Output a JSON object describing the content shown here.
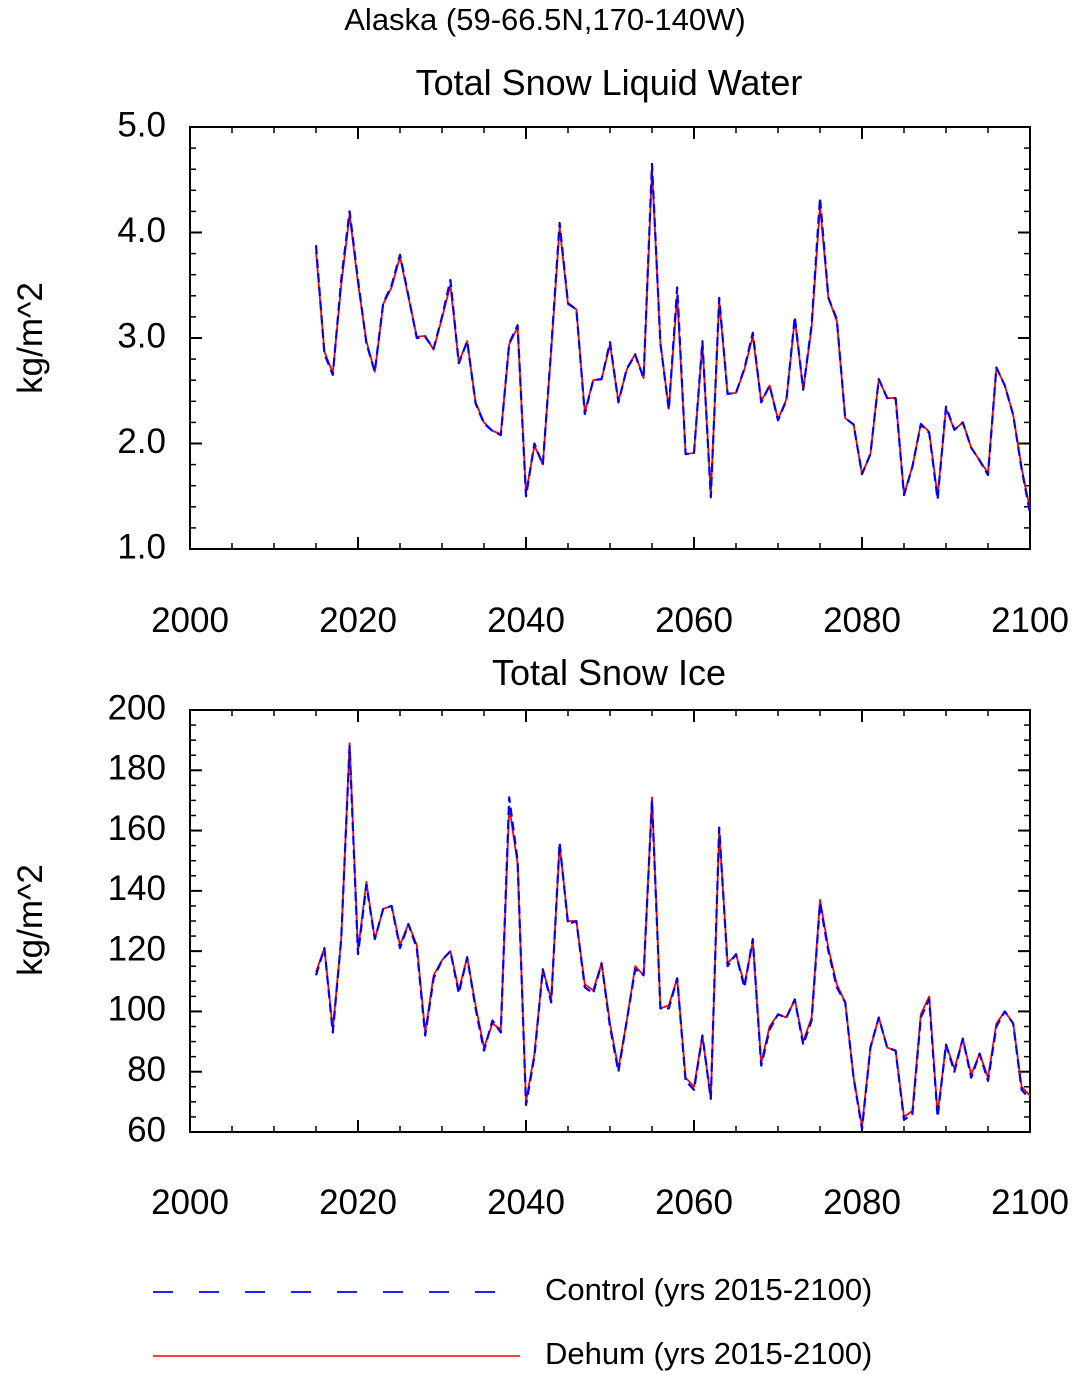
{
  "suptitle": "Alaska (59-66.5N,170-140W)",
  "legend": [
    {
      "label": "Control (yrs 2015-2100)",
      "color": "#0000ff",
      "dashed": true
    },
    {
      "label": "Dehum (yrs 2015-2100)",
      "color": "#ff0000",
      "dashed": false
    }
  ],
  "chart_data": [
    {
      "type": "line",
      "title": "Total Snow Liquid Water",
      "xlabel": "",
      "ylabel": "kg/m^2",
      "xlim": [
        2000,
        2100
      ],
      "ylim": [
        1.0,
        5.0
      ],
      "xticks": [
        2000,
        2020,
        2040,
        2060,
        2080,
        2100
      ],
      "yticks": [
        1.0,
        2.0,
        3.0,
        4.0,
        5.0
      ],
      "ytick_labels": [
        "1.0",
        "2.0",
        "3.0",
        "4.0",
        "5.0"
      ],
      "x": [
        2015,
        2016,
        2017,
        2018,
        2019,
        2020,
        2021,
        2022,
        2023,
        2024,
        2025,
        2026,
        2027,
        2028,
        2029,
        2030,
        2031,
        2032,
        2033,
        2034,
        2035,
        2036,
        2037,
        2038,
        2039,
        2040,
        2041,
        2042,
        2043,
        2044,
        2045,
        2046,
        2047,
        2048,
        2049,
        2050,
        2051,
        2052,
        2053,
        2054,
        2055,
        2056,
        2057,
        2058,
        2059,
        2060,
        2061,
        2062,
        2063,
        2064,
        2065,
        2066,
        2067,
        2068,
        2069,
        2070,
        2071,
        2072,
        2073,
        2074,
        2075,
        2076,
        2077,
        2078,
        2079,
        2080,
        2081,
        2082,
        2083,
        2084,
        2085,
        2086,
        2087,
        2088,
        2089,
        2090,
        2091,
        2092,
        2093,
        2094,
        2095,
        2096,
        2097,
        2098,
        2099,
        2100
      ],
      "series": [
        {
          "name": "Control (yrs 2015-2100)",
          "color": "#0000ff",
          "dashed": true,
          "values": [
            3.88,
            2.85,
            2.65,
            3.55,
            4.2,
            3.55,
            2.95,
            2.68,
            3.33,
            3.5,
            3.79,
            3.4,
            3.0,
            3.01,
            2.9,
            3.2,
            3.55,
            2.76,
            2.97,
            2.38,
            2.19,
            2.12,
            2.08,
            2.95,
            3.12,
            1.5,
            2.0,
            1.8,
            2.9,
            4.09,
            3.33,
            3.27,
            2.28,
            2.6,
            2.61,
            2.96,
            2.39,
            2.71,
            2.84,
            2.62,
            4.65,
            2.95,
            2.32,
            3.48,
            1.9,
            1.91,
            2.97,
            1.49,
            3.38,
            2.47,
            2.48,
            2.71,
            3.05,
            2.39,
            2.55,
            2.22,
            2.41,
            3.2,
            2.51,
            3.12,
            4.33,
            3.38,
            3.18,
            2.24,
            2.18,
            1.71,
            1.9,
            2.61,
            2.43,
            2.43,
            1.51,
            1.78,
            2.18,
            2.1,
            1.47,
            2.35,
            2.13,
            2.2,
            1.96,
            1.84,
            1.7,
            2.72,
            2.55,
            2.27,
            1.76,
            1.34
          ]
        },
        {
          "name": "Dehum (yrs 2015-2100)",
          "color": "#ff0000",
          "dashed": false,
          "values": [
            3.82,
            2.87,
            2.67,
            3.5,
            4.17,
            3.52,
            2.97,
            2.68,
            3.32,
            3.48,
            3.77,
            3.39,
            3.01,
            3.02,
            2.89,
            3.19,
            3.5,
            2.77,
            2.97,
            2.39,
            2.2,
            2.12,
            2.09,
            2.94,
            3.1,
            1.53,
            1.98,
            1.8,
            2.88,
            4.05,
            3.32,
            3.27,
            2.3,
            2.6,
            2.61,
            2.94,
            2.4,
            2.7,
            2.85,
            2.62,
            4.6,
            2.95,
            2.33,
            3.4,
            1.9,
            1.91,
            2.95,
            1.52,
            3.35,
            2.47,
            2.48,
            2.7,
            3.02,
            2.4,
            2.55,
            2.23,
            2.42,
            3.18,
            2.51,
            3.1,
            4.25,
            3.38,
            3.16,
            2.24,
            2.18,
            1.71,
            1.9,
            2.61,
            2.43,
            2.43,
            1.52,
            1.78,
            2.19,
            2.11,
            1.5,
            2.33,
            2.13,
            2.2,
            1.96,
            1.84,
            1.72,
            2.72,
            2.55,
            2.27,
            1.77,
            1.38
          ]
        }
      ]
    },
    {
      "type": "line",
      "title": "Total Snow Ice",
      "xlabel": "",
      "ylabel": "kg/m^2",
      "xlim": [
        2000,
        2100
      ],
      "ylim": [
        60,
        200
      ],
      "xticks": [
        2000,
        2020,
        2040,
        2060,
        2080,
        2100
      ],
      "yticks": [
        60,
        80,
        100,
        120,
        140,
        160,
        180,
        200
      ],
      "ytick_labels": [
        "60",
        "80",
        "100",
        "120",
        "140",
        "160",
        "180",
        "200"
      ],
      "x": [
        2015,
        2016,
        2017,
        2018,
        2019,
        2020,
        2021,
        2022,
        2023,
        2024,
        2025,
        2026,
        2027,
        2028,
        2029,
        2030,
        2031,
        2032,
        2033,
        2034,
        2035,
        2036,
        2037,
        2038,
        2039,
        2040,
        2041,
        2042,
        2043,
        2044,
        2045,
        2046,
        2047,
        2048,
        2049,
        2050,
        2051,
        2052,
        2053,
        2054,
        2055,
        2056,
        2057,
        2058,
        2059,
        2060,
        2061,
        2062,
        2063,
        2064,
        2065,
        2066,
        2067,
        2068,
        2069,
        2070,
        2071,
        2072,
        2073,
        2074,
        2075,
        2076,
        2077,
        2078,
        2079,
        2080,
        2081,
        2082,
        2083,
        2084,
        2085,
        2086,
        2087,
        2088,
        2089,
        2090,
        2091,
        2092,
        2093,
        2094,
        2095,
        2096,
        2097,
        2098,
        2099,
        2100
      ],
      "series": [
        {
          "name": "Control (yrs 2015-2100)",
          "color": "#0000ff",
          "dashed": true,
          "values": [
            112,
            121,
            93,
            124,
            188,
            119,
            142,
            124,
            134,
            135,
            121,
            129,
            121,
            92,
            111,
            117,
            120,
            106,
            118,
            101,
            87,
            97,
            93,
            171,
            150,
            69,
            85,
            114,
            103,
            156,
            129,
            130,
            108,
            106,
            116,
            95,
            80,
            97,
            114,
            112,
            170,
            101,
            101,
            111,
            77,
            74,
            92,
            71,
            161,
            115,
            119,
            108,
            124,
            82,
            94,
            99,
            98,
            104,
            89,
            97,
            136,
            120,
            108,
            103,
            78,
            61,
            88,
            98,
            88,
            87,
            64,
            66,
            98,
            104,
            65,
            89,
            80,
            91,
            78,
            86,
            77,
            95,
            100,
            96,
            74,
            71
          ]
        },
        {
          "name": "Dehum (yrs 2015-2100)",
          "color": "#ff0000",
          "dashed": false,
          "values": [
            113,
            121,
            94,
            124,
            189,
            120,
            143,
            124,
            134,
            135,
            122,
            129,
            122,
            93,
            112,
            117,
            120,
            107,
            118,
            102,
            88,
            96,
            94,
            168,
            149,
            70,
            86,
            114,
            104,
            155,
            130,
            130,
            109,
            107,
            116,
            96,
            81,
            97,
            115,
            112,
            171,
            101,
            102,
            111,
            78,
            75,
            92,
            71,
            160,
            116,
            119,
            109,
            123,
            83,
            95,
            99,
            98,
            104,
            90,
            98,
            137,
            121,
            109,
            103,
            78,
            62,
            88,
            98,
            88,
            87,
            65,
            67,
            99,
            105,
            66,
            89,
            81,
            91,
            79,
            86,
            78,
            96,
            100,
            96,
            75,
            72
          ]
        }
      ]
    }
  ]
}
